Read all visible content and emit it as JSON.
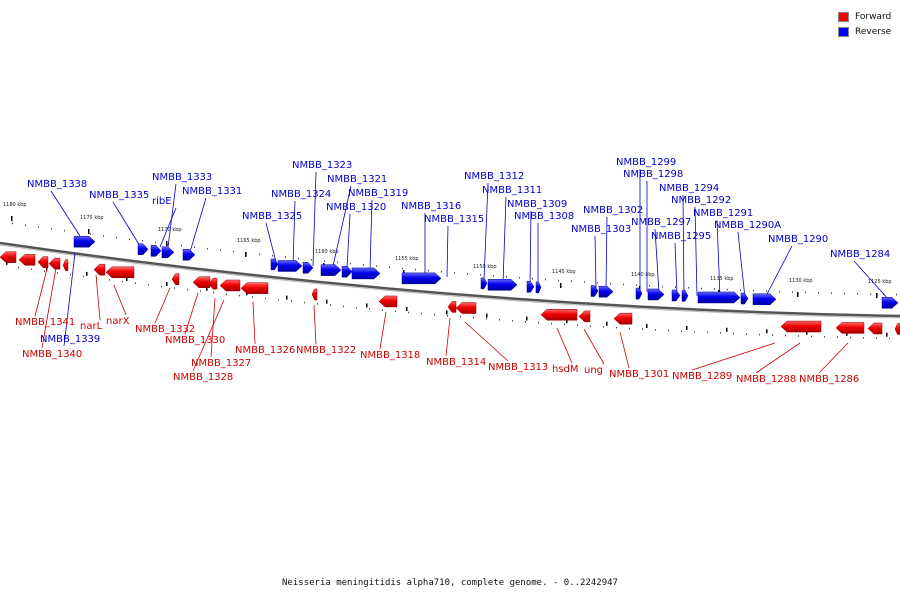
{
  "legend": {
    "forward_label": "Forward",
    "reverse_label": "Reverse",
    "forward_color": "#ff0000",
    "reverse_color": "#0000ff"
  },
  "caption": "Neisseria meningitidis alpha710, complete genome. - 0..2242947",
  "scale_ticks": [
    "1180 kbp",
    "1175 kbp",
    "1170 kbp",
    "1165 kbp",
    "1160 kbp",
    "1155 kbp",
    "1150 kbp",
    "1145 kbp",
    "1140 kbp",
    "1135 kbp",
    "1130 kbp",
    "1125 kbp"
  ],
  "genes": {
    "reverse": [
      "NMBB_1338",
      "NMBB_1335",
      "ribE",
      "NMBB_1333",
      "NMBB_1331",
      "NMBB_1325",
      "NMBB_1324",
      "NMBB_1323",
      "NMBB_1321",
      "NMBB_1320",
      "NMBB_1319",
      "NMBB_1316",
      "NMBB_1315",
      "NMBB_1312",
      "NMBB_1311",
      "NMBB_1309",
      "NMBB_1308",
      "NMBB_1303",
      "NMBB_1302",
      "NMBB_1299",
      "NMBB_1298",
      "NMBB_1297",
      "NMBB_1295",
      "NMBB_1294",
      "NMBB_1292",
      "NMBB_1291",
      "NMBB_1290A",
      "NMBB_1290",
      "NMBB_1284",
      "NMBB_1339"
    ],
    "forward": [
      "NMBB_1341",
      "NMBB_1340",
      "narL",
      "narX",
      "NMBB_1332",
      "NMBB_1330",
      "NMBB_1327",
      "NMBB_1328",
      "NMBB_1326",
      "NMBB_1322",
      "NMBB_1318",
      "NMBB_1314",
      "NMBB_1313",
      "hsdM",
      "ung",
      "NMBB_1301",
      "NMBB_1289",
      "NMBB_1288",
      "NMBB_1286"
    ]
  }
}
